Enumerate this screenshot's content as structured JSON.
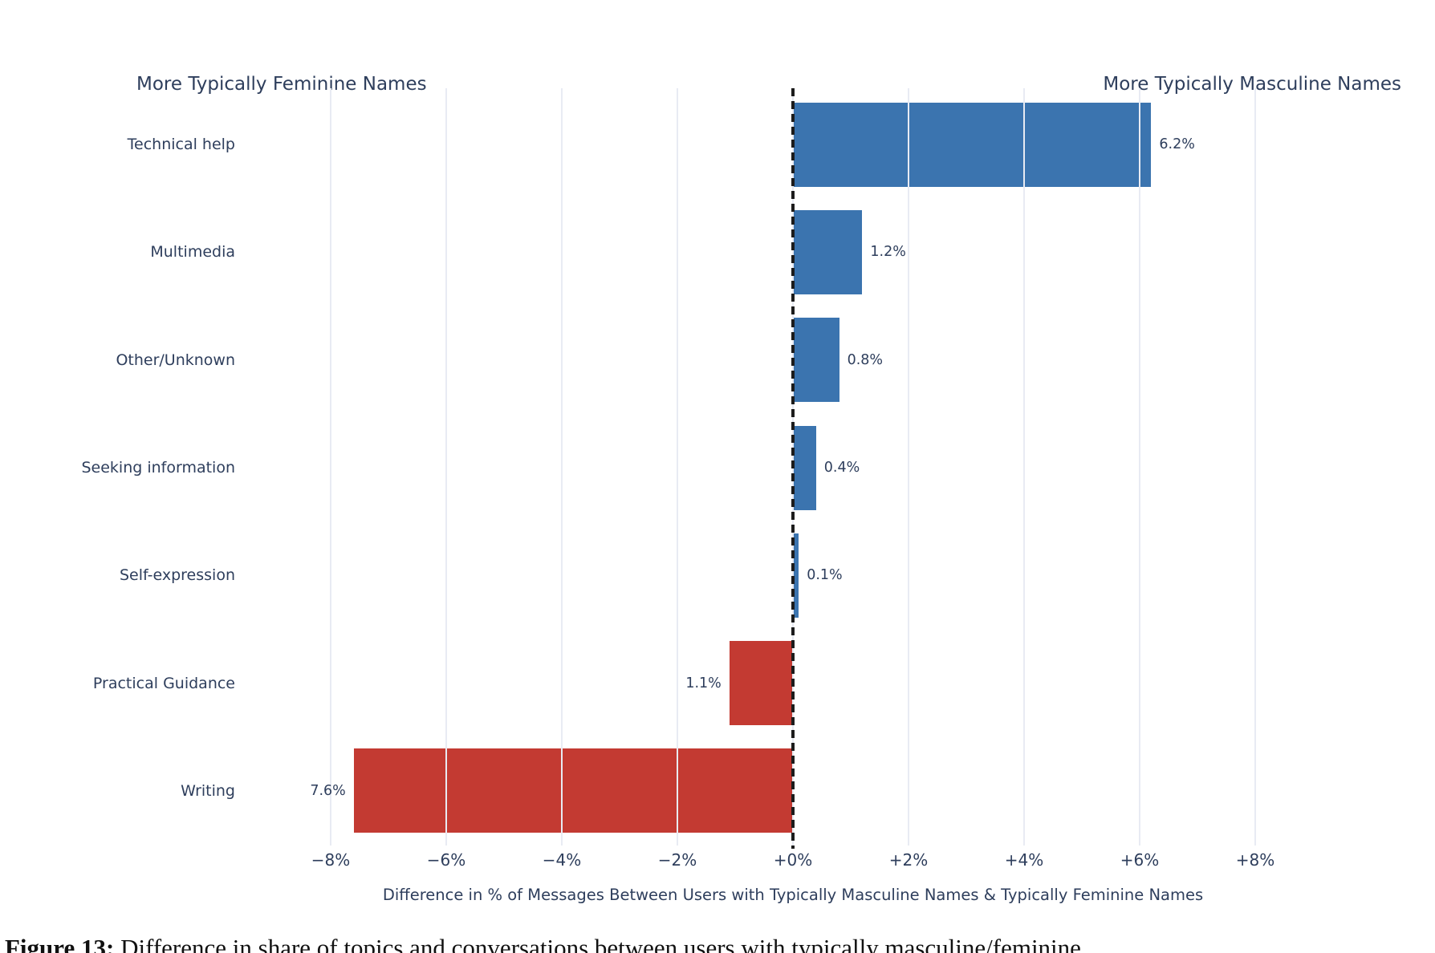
{
  "header": {
    "left_title": "More Typically Feminine Names",
    "right_title": "More Typically Masculine Names"
  },
  "chart_data": {
    "type": "bar",
    "orientation": "horizontal",
    "title": "",
    "categories": [
      "Technical help",
      "Multimedia",
      "Other/Unknown",
      "Seeking information",
      "Self-expression",
      "Practical Guidance",
      "Writing"
    ],
    "values": [
      6.2,
      1.2,
      0.8,
      0.4,
      0.1,
      -1.1,
      -7.6
    ],
    "bar_labels": [
      "6.2%",
      "1.2%",
      "0.8%",
      "0.4%",
      "0.1%",
      "1.1%",
      "7.6%"
    ],
    "xlabel": "Difference in % of Messages Between Users with Typically Masculine Names & Typically Feminine Names",
    "ylabel": "",
    "xlim": [
      -8.5,
      8.5
    ],
    "x_ticks": [
      {
        "value": -8,
        "label": "−8%"
      },
      {
        "value": -6,
        "label": "−6%"
      },
      {
        "value": -4,
        "label": "−4%"
      },
      {
        "value": -2,
        "label": "−2%"
      },
      {
        "value": 0,
        "label": "+0%"
      },
      {
        "value": 2,
        "label": "+2%"
      },
      {
        "value": 4,
        "label": "+4%"
      },
      {
        "value": 6,
        "label": "+6%"
      },
      {
        "value": 8,
        "label": "+8%"
      }
    ],
    "grid": true,
    "legend": "none",
    "colors": {
      "positive": "#3b74af",
      "negative": "#c33a32",
      "grid": "#e8ebf3",
      "zero_line": "#1c1c1c",
      "text": "#2e3e5c"
    },
    "zero_line_style": "dashed"
  },
  "caption": {
    "label": "Figure 13:",
    "text": " Difference in share of topics and conversations between users with typically masculine/feminine"
  }
}
